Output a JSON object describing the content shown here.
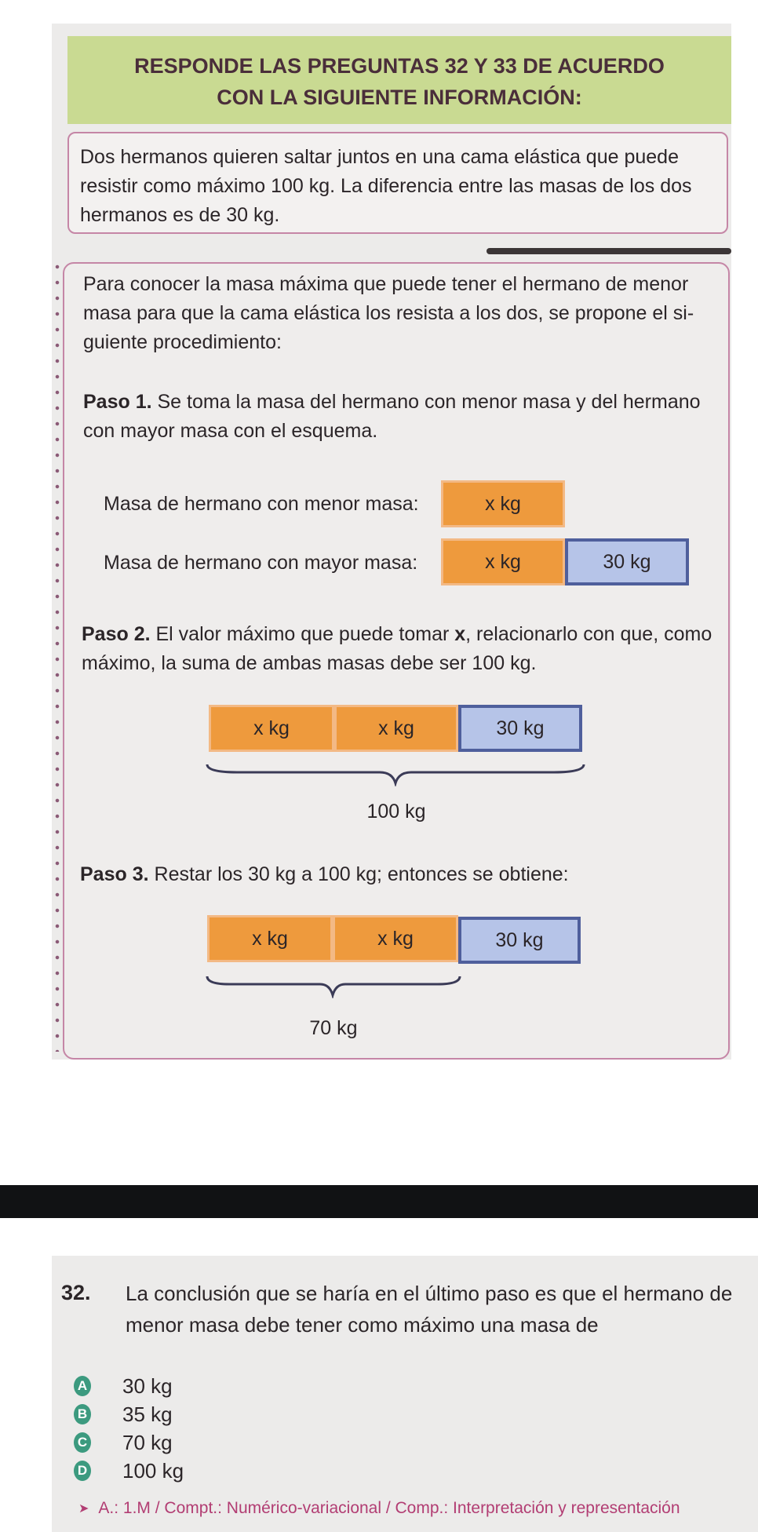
{
  "header": {
    "line1": "RESPONDE LAS PREGUNTAS 32 Y 33 DE ACUERDO",
    "line2": "CON LA SIGUIENTE INFORMACIÓN:"
  },
  "info": {
    "line1": "Dos hermanos quieren saltar juntos en una cama elástica que puede",
    "line2": "resistir como máximo 100 kg. La diferencia entre las masas de los dos",
    "line3": "hermanos es de 30 kg."
  },
  "procedure": {
    "intro1": "Para conocer la masa máxima que puede tener el hermano de menor",
    "intro2": "masa para que la cama elástica los resista a los dos, se propone el si-",
    "intro3": "guiente procedimiento:",
    "step1_label": "Paso 1.",
    "step1_text1": " Se toma la masa del hermano con menor masa y del hermano",
    "step1_text2": "con mayor masa con el esquema.",
    "row1_label": "Masa de hermano con menor masa:",
    "row2_label": "Masa de hermano con mayor masa:",
    "x_kg": "x kg",
    "thirty_kg": "30 kg",
    "step2_label": "Paso 2.",
    "step2_text1_a": " El valor máximo que puede tomar ",
    "step2_x": "x",
    "step2_text1_b": ", relacionarlo con que, como",
    "step2_text2": "máximo, la suma de ambas masas debe ser 100 kg.",
    "total_100": "100 kg",
    "step3_label": "Paso 3.",
    "step3_text": " Restar los 30 kg a 100 kg; entonces se obtiene:",
    "total_70": "70 kg"
  },
  "question": {
    "number": "32.",
    "text1": "La conclusión que se haría en el último paso es que el hermano de",
    "text2": "menor masa debe tener como máximo una masa de",
    "options": [
      {
        "letter": "A",
        "text": "30 kg"
      },
      {
        "letter": "B",
        "text": "35 kg"
      },
      {
        "letter": "C",
        "text": "70 kg"
      },
      {
        "letter": "D",
        "text": "100 kg"
      }
    ],
    "note": "A.: 1.M / Compt.: Numérico-variacional / Comp.: Interpretación y representación"
  },
  "colors": {
    "header_bg": "#c9da92",
    "box_border": "#c586a6",
    "x_bar": "#ee9a3d",
    "thirty_bar": "#b6c4e8",
    "thirty_border": "#4f5f9c",
    "option_badge": "#3c9a7f",
    "note_text": "#b23d73"
  }
}
